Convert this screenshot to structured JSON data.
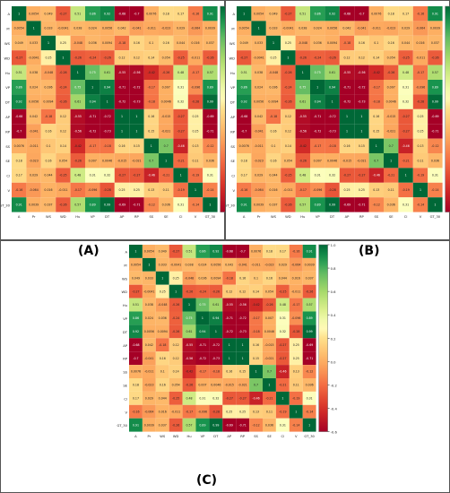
{
  "variables": [
    "A",
    "Pr",
    "WS",
    "WD",
    "Hu",
    "VP",
    "DT",
    "AP",
    "RP",
    "SS",
    "SE",
    "Cl",
    "V",
    "GT_30"
  ],
  "panels": [
    {
      "label": "(A)"
    },
    {
      "label": "(B)"
    },
    {
      "label": "(C)"
    }
  ],
  "chart_data": [
    {
      "type": "heatmap",
      "panel": "(A)",
      "x_categories": [
        "A",
        "Pr",
        "WS",
        "WD",
        "Hu",
        "VP",
        "DT",
        "AP",
        "RP",
        "SS",
        "SE",
        "Cl",
        "V",
        "GT_30"
      ],
      "y_categories": [
        "A",
        "Pr",
        "WS",
        "WD",
        "Hu",
        "VP",
        "DT",
        "AP",
        "RP",
        "SS",
        "SE",
        "Cl",
        "V",
        "GT_30"
      ],
      "colorbar": {
        "min": -0.6,
        "max": 1.0,
        "ticks": [
          1.0,
          0.8,
          0.6,
          0.4,
          0.2,
          0.0,
          -0.2,
          -0.4,
          -0.6
        ]
      },
      "colormap": "RdYlGn"
    },
    {
      "type": "heatmap",
      "panel": "(B)",
      "x_categories": [
        "A",
        "Pr",
        "WS",
        "WD",
        "Hu",
        "VP",
        "DT",
        "AP",
        "RP",
        "SS",
        "SE",
        "Cl",
        "V",
        "GT_30"
      ],
      "y_categories": [
        "A",
        "Pr",
        "WS",
        "WD",
        "Hu",
        "VP",
        "DT",
        "AP",
        "RP",
        "SS",
        "SE",
        "Cl",
        "V",
        "GT_30"
      ],
      "colorbar": {
        "min": -0.6,
        "max": 1.0,
        "ticks": [
          1.0,
          0.8,
          0.6,
          0.4,
          0.2,
          0.0,
          -0.2,
          -0.4,
          -0.6
        ]
      },
      "colormap": "RdYlGn"
    },
    {
      "type": "heatmap",
      "panel": "(C)",
      "x_categories": [
        "A",
        "Pr",
        "WS",
        "WD",
        "Hu",
        "VP",
        "DT",
        "AP",
        "RP",
        "SS",
        "SE",
        "Cl",
        "V",
        "GT_30"
      ],
      "y_categories": [
        "A",
        "Pr",
        "WS",
        "WD",
        "Hu",
        "VP",
        "DT",
        "AP",
        "RP",
        "SS",
        "SE",
        "Cl",
        "V",
        "GT_30"
      ],
      "colorbar": {
        "min": -0.6,
        "max": 1.0,
        "ticks": [
          1.0,
          0.8,
          0.6,
          0.4,
          0.2,
          0.0,
          -0.2,
          -0.4,
          -0.6
        ]
      },
      "colormap": "RdYlGn"
    }
  ],
  "matrix": [
    [
      1,
      0.0054,
      0.049,
      -0.27,
      0.51,
      0.86,
      0.92,
      -0.68,
      -0.7,
      0.0076,
      0.18,
      0.17,
      -0.16,
      0.91
    ],
    [
      0.0054,
      1,
      0.033,
      -0.0041,
      0.038,
      0.024,
      0.0056,
      0.042,
      -0.041,
      -0.011,
      -0.023,
      0.029,
      -0.064,
      0.0039
    ],
    [
      0.049,
      0.033,
      1,
      0.25,
      -0.048,
      0.036,
      0.0094,
      -0.18,
      0.16,
      0.1,
      0.16,
      0.044,
      0.016,
      0.037
    ],
    [
      -0.27,
      -0.0041,
      0.25,
      1,
      -0.26,
      -0.24,
      -0.26,
      0.12,
      0.12,
      0.14,
      0.054,
      -0.25,
      -0.011,
      -0.26
    ],
    [
      0.51,
      0.038,
      -0.048,
      -0.26,
      1,
      0.75,
      0.61,
      -0.55,
      -0.56,
      -0.42,
      -0.26,
      0.48,
      -0.17,
      0.57
    ],
    [
      0.86,
      0.024,
      0.036,
      -0.24,
      0.75,
      1,
      0.94,
      -0.71,
      -0.72,
      -0.17,
      0.007,
      0.31,
      -0.096,
      0.89
    ],
    [
      0.92,
      0.0056,
      0.0094,
      -0.26,
      0.61,
      0.94,
      1,
      -0.72,
      -0.73,
      -0.18,
      0.0046,
      0.32,
      -0.28,
      0.99
    ],
    [
      -0.68,
      0.042,
      -0.18,
      0.12,
      -0.55,
      -0.71,
      -0.72,
      1,
      1,
      0.16,
      -0.015,
      -0.27,
      0.25,
      -0.69
    ],
    [
      -0.7,
      -0.041,
      0.16,
      0.12,
      -0.56,
      -0.72,
      -0.73,
      1,
      1,
      0.15,
      -0.021,
      -0.27,
      0.25,
      -0.71
    ],
    [
      0.0076,
      -0.011,
      0.1,
      0.14,
      -0.42,
      -0.17,
      -0.18,
      0.16,
      0.15,
      1,
      0.7,
      -0.46,
      0.13,
      -0.12
    ],
    [
      0.18,
      -0.023,
      0.16,
      0.054,
      -0.26,
      0.007,
      0.0046,
      -0.015,
      -0.021,
      0.7,
      1,
      -0.21,
      0.11,
      0.036
    ],
    [
      0.17,
      0.029,
      0.044,
      -0.25,
      0.48,
      0.31,
      0.32,
      -0.27,
      -0.27,
      -0.46,
      -0.21,
      1,
      -0.19,
      0.31
    ],
    [
      -0.16,
      -0.064,
      0.016,
      -0.011,
      -0.17,
      -0.096,
      -0.28,
      0.25,
      0.25,
      0.13,
      0.11,
      -0.19,
      1,
      -0.14
    ],
    [
      0.91,
      0.0039,
      0.037,
      -0.26,
      0.57,
      0.89,
      0.99,
      -0.69,
      -0.71,
      -0.12,
      0.036,
      0.31,
      -0.14,
      1
    ]
  ],
  "colors": {
    "neg": "#a50026",
    "mid": "#ffffbf",
    "pos": "#006837",
    "frame": "#555555"
  }
}
